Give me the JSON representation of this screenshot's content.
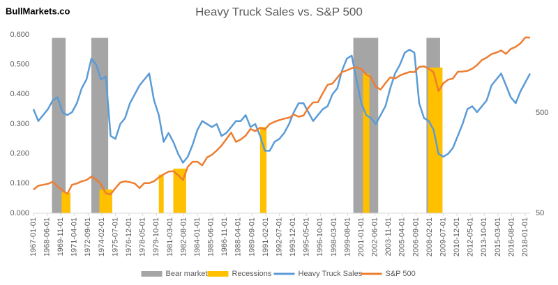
{
  "chart_data": {
    "type": "line",
    "title": "Heavy Truck Sales vs. S&P 500",
    "watermark": "BullMarkets.co",
    "xlim": [
      "1967-01-01",
      "2018-07-01"
    ],
    "xticks": [
      "1967-01-01",
      "1968-06-01",
      "1969-11-01",
      "1971-04-01",
      "1972-09-01",
      "1974-02-01",
      "1975-07-01",
      "1976-12-01",
      "1978-05-01",
      "1979-10-01",
      "1981-03-01",
      "1982-08-01",
      "1984-01-01",
      "1985-06-01",
      "1986-11-01",
      "1988-04-01",
      "1989-09-01",
      "1991-02-01",
      "1992-07-01",
      "1993-12-01",
      "1995-05-01",
      "1996-10-01",
      "1998-03-01",
      "1999-08-01",
      "2001-01-01",
      "2002-06-01",
      "2003-11-01",
      "2005-04-01",
      "2006-09-01",
      "2008-02-01",
      "2009-07-01",
      "2010-12-01",
      "2012-05-01",
      "2013-10-01",
      "2015-03-01",
      "2016-08-01",
      "2018-01-01"
    ],
    "ylim": [
      0,
      0.6
    ],
    "yticks": [
      {
        "value": 0,
        "label": "0.000"
      },
      {
        "value": 0.1,
        "label": "0.100"
      },
      {
        "value": 0.2,
        "label": "0.200"
      },
      {
        "value": 0.3,
        "label": "0.300"
      },
      {
        "value": 0.4,
        "label": "0.400"
      },
      {
        "value": 0.5,
        "label": "0.500"
      },
      {
        "value": 0.6,
        "label": "0.600"
      }
    ],
    "y2lim": [
      50,
      3000
    ],
    "y2ticks": [
      50,
      500
    ],
    "y2_log": true,
    "legend": "bottom",
    "bands": [
      {
        "name": "Bear markets",
        "color": "#a5a5a5",
        "periods": [
          [
            "1968-12-01",
            "1970-05-01"
          ],
          [
            "1973-01-01",
            "1974-10-01"
          ],
          [
            "2000-03-01",
            "2002-10-01"
          ],
          [
            "2007-10-01",
            "2009-03-01"
          ]
        ],
        "values": [
          0.59,
          0.59,
          0.59,
          0.59
        ]
      },
      {
        "name": "Recessions",
        "color": "#ffc000",
        "periods": [
          [
            "1969-12-01",
            "1970-11-01"
          ],
          [
            "1973-11-01",
            "1975-03-01"
          ],
          [
            "1980-01-01",
            "1980-07-01"
          ],
          [
            "1981-07-01",
            "1982-11-01"
          ],
          [
            "1990-07-01",
            "1991-03-01"
          ],
          [
            "2001-03-01",
            "2001-11-01"
          ],
          [
            "2007-12-01",
            "2009-06-01"
          ]
        ],
        "values": [
          0.07,
          0.08,
          0.13,
          0.15,
          0.29,
          0.47,
          0.49
        ]
      }
    ],
    "x": [
      "1967-01-01",
      "1967-07-01",
      "1968-01-01",
      "1968-07-01",
      "1969-01-01",
      "1969-07-01",
      "1970-01-01",
      "1970-07-01",
      "1971-01-01",
      "1971-07-01",
      "1972-01-01",
      "1972-07-01",
      "1973-01-01",
      "1973-07-01",
      "1974-01-01",
      "1974-07-01",
      "1975-01-01",
      "1975-07-01",
      "1976-01-01",
      "1976-07-01",
      "1977-01-01",
      "1977-07-01",
      "1978-01-01",
      "1978-07-01",
      "1979-01-01",
      "1979-07-01",
      "1980-01-01",
      "1980-07-01",
      "1981-01-01",
      "1981-07-01",
      "1982-01-01",
      "1982-07-01",
      "1983-01-01",
      "1983-07-01",
      "1984-01-01",
      "1984-07-01",
      "1985-01-01",
      "1985-07-01",
      "1986-01-01",
      "1986-07-01",
      "1987-01-01",
      "1987-07-01",
      "1988-01-01",
      "1988-07-01",
      "1989-01-01",
      "1989-07-01",
      "1990-01-01",
      "1990-07-01",
      "1991-01-01",
      "1991-07-01",
      "1992-01-01",
      "1992-07-01",
      "1993-01-01",
      "1993-07-01",
      "1994-01-01",
      "1994-07-01",
      "1995-01-01",
      "1995-07-01",
      "1996-01-01",
      "1996-07-01",
      "1997-01-01",
      "1997-07-01",
      "1998-01-01",
      "1998-07-01",
      "1999-01-01",
      "1999-07-01",
      "2000-01-01",
      "2000-07-01",
      "2001-01-01",
      "2001-07-01",
      "2002-01-01",
      "2002-07-01",
      "2003-01-01",
      "2003-07-01",
      "2004-01-01",
      "2004-07-01",
      "2005-01-01",
      "2005-07-01",
      "2006-01-01",
      "2006-07-01",
      "2007-01-01",
      "2007-07-01",
      "2008-01-01",
      "2008-07-01",
      "2009-01-01",
      "2009-07-01",
      "2010-01-01",
      "2010-07-01",
      "2011-01-01",
      "2011-07-01",
      "2012-01-01",
      "2012-07-01",
      "2013-01-01",
      "2013-07-01",
      "2014-01-01",
      "2014-07-01",
      "2015-01-01",
      "2015-07-01",
      "2016-01-01",
      "2016-07-01",
      "2017-01-01",
      "2017-07-01",
      "2018-01-01",
      "2018-07-01"
    ],
    "series": [
      {
        "name": "Heavy Truck Sales",
        "color": "#5b9bd5",
        "values": [
          0.35,
          0.31,
          0.33,
          0.35,
          0.38,
          0.39,
          0.34,
          0.33,
          0.34,
          0.37,
          0.42,
          0.45,
          0.52,
          0.5,
          0.45,
          0.46,
          0.26,
          0.25,
          0.3,
          0.32,
          0.37,
          0.4,
          0.43,
          0.45,
          0.47,
          0.38,
          0.33,
          0.24,
          0.27,
          0.24,
          0.2,
          0.17,
          0.19,
          0.23,
          0.28,
          0.31,
          0.3,
          0.29,
          0.3,
          0.26,
          0.27,
          0.29,
          0.31,
          0.31,
          0.33,
          0.29,
          0.3,
          0.26,
          0.21,
          0.21,
          0.24,
          0.25,
          0.27,
          0.3,
          0.34,
          0.37,
          0.37,
          0.34,
          0.31,
          0.33,
          0.35,
          0.36,
          0.4,
          0.42,
          0.48,
          0.52,
          0.53,
          0.45,
          0.37,
          0.33,
          0.32,
          0.3,
          0.33,
          0.36,
          0.42,
          0.47,
          0.5,
          0.54,
          0.55,
          0.54,
          0.37,
          0.32,
          0.31,
          0.28,
          0.2,
          0.19,
          0.2,
          0.22,
          0.26,
          0.3,
          0.35,
          0.36,
          0.34,
          0.36,
          0.38,
          0.43,
          0.45,
          0.47,
          0.43,
          0.39,
          0.37,
          0.41,
          0.44,
          0.47
        ]
      },
      {
        "name": "S&P 500",
        "color": "#ed7d31",
        "axis": "y2",
        "values": [
          86,
          94,
          96,
          98,
          103,
          92,
          85,
          78,
          96,
          99,
          104,
          107,
          116,
          108,
          97,
          79,
          77,
          89,
          101,
          104,
          102,
          99,
          89,
          100,
          100,
          104,
          114,
          122,
          130,
          131,
          120,
          107,
          145,
          163,
          163,
          150,
          180,
          191,
          211,
          236,
          274,
          318,
          257,
          272,
          297,
          346,
          329,
          356,
          343,
          387,
          408,
          424,
          438,
          448,
          481,
          458,
          470,
          562,
          636,
          639,
          786,
          954,
          980,
          1120,
          1280,
          1328,
          1394,
          1430,
          1366,
          1211,
          1130,
          911,
          855,
          990,
          1131,
          1101,
          1181,
          1234,
          1280,
          1276,
          1438,
          1455,
          1378,
          1267,
          825,
          987,
          1073,
          1101,
          1286,
          1292,
          1312,
          1379,
          1498,
          1685,
          1782,
          1930,
          1995,
          2098,
          1940,
          2173,
          2275,
          2470,
          2823,
          2816
        ]
      }
    ]
  }
}
